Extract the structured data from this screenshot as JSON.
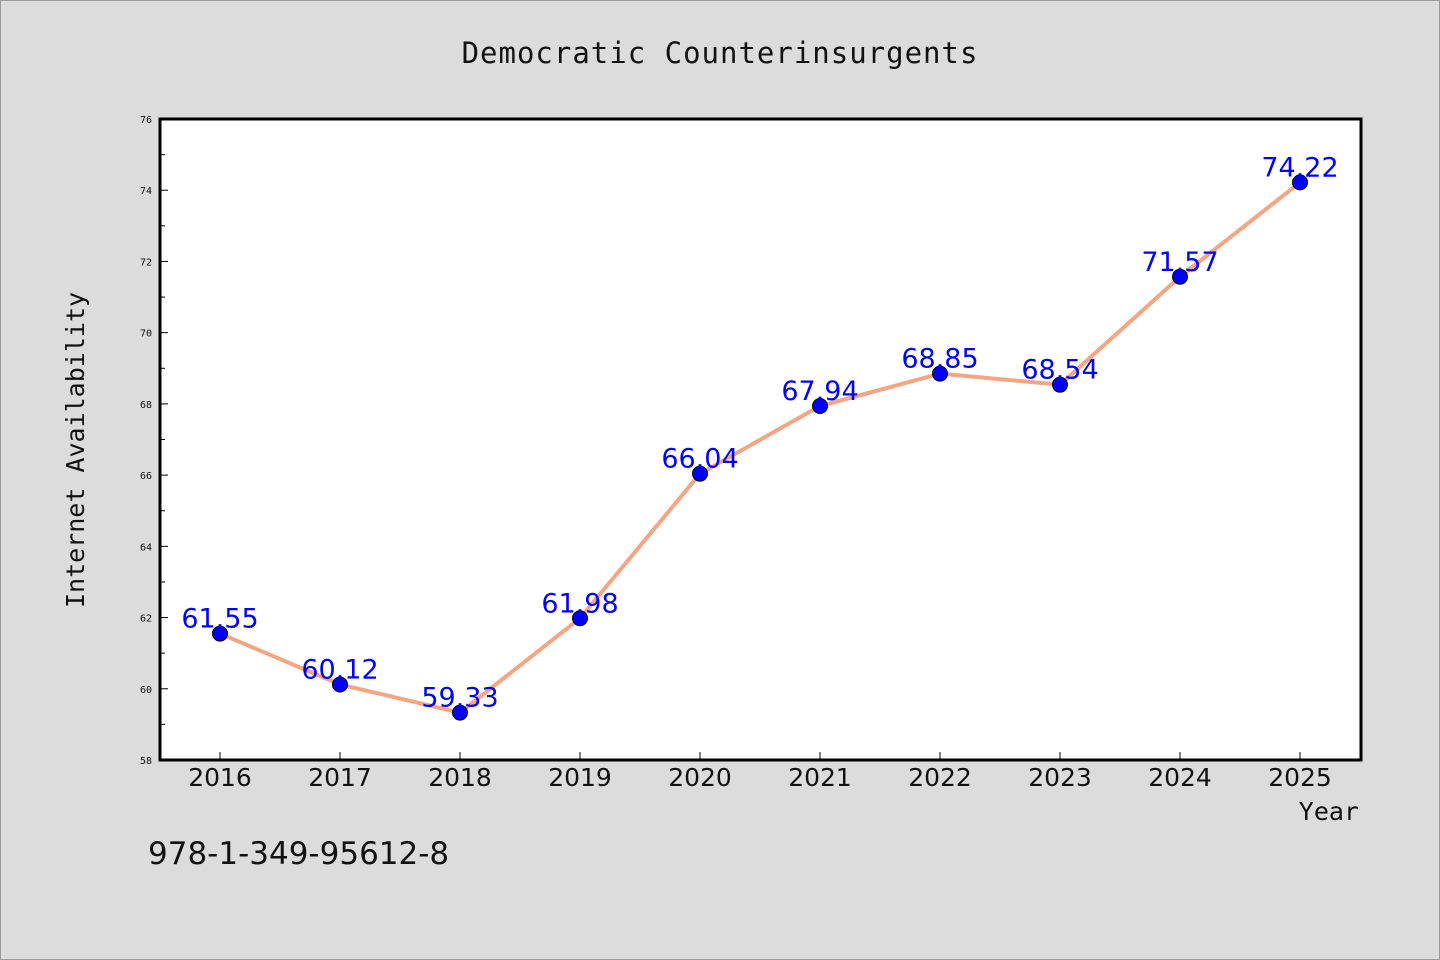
{
  "chart_data": {
    "type": "line",
    "title": "Democratic Counterinsurgents",
    "xlabel": "Year",
    "ylabel": "Internet Availability",
    "categories": [
      "2016",
      "2017",
      "2018",
      "2019",
      "2020",
      "2021",
      "2022",
      "2023",
      "2024",
      "2025"
    ],
    "values": [
      61.55,
      60.12,
      59.33,
      61.98,
      66.04,
      67.94,
      68.85,
      68.54,
      71.57,
      74.22
    ],
    "data_labels": [
      "61.55",
      "60.12",
      "59.33",
      "61.98",
      "66.04",
      "67.94",
      "68.85",
      "68.54",
      "71.57",
      "74.22"
    ],
    "ylim": [
      58,
      76
    ],
    "yticks": [
      "58",
      "60",
      "62",
      "64",
      "66",
      "68",
      "70",
      "72",
      "74",
      "76"
    ],
    "grid": false,
    "line_color": "#f4a582",
    "marker_color": "#0000ff",
    "label_color": "#0000ff"
  },
  "footer": {
    "isbn": "978-1-349-95612-8"
  }
}
